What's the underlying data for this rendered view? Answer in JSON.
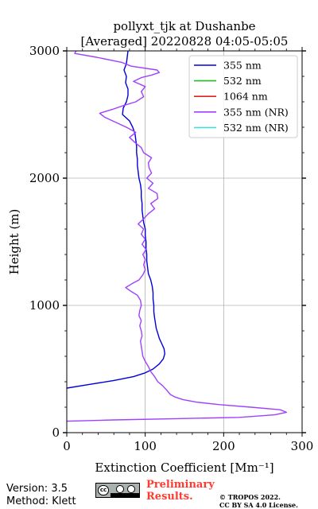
{
  "chart_data": {
    "type": "line",
    "title_line1": "pollyxt_tjk at Dushanbe",
    "title_line2": "[Averaged] 20220828 04:05-05:05",
    "xlabel": "Extinction Coefficient [Mm⁻¹]",
    "ylabel": "Height (m)",
    "xlim": [
      0,
      300
    ],
    "ylim": [
      0,
      3000
    ],
    "x_ticks": [
      "0",
      "100",
      "200",
      "300"
    ],
    "y_ticks": [
      "0",
      "1000",
      "2000",
      "3000"
    ],
    "grid": true,
    "legend_position": "top-right",
    "series": [
      {
        "name": "355 nm",
        "color": "#0000dd",
        "points": [
          [
            0,
            350
          ],
          [
            30,
            380
          ],
          [
            60,
            410
          ],
          [
            85,
            440
          ],
          [
            100,
            470
          ],
          [
            110,
            500
          ],
          [
            118,
            540
          ],
          [
            123,
            580
          ],
          [
            125,
            620
          ],
          [
            124,
            660
          ],
          [
            121,
            700
          ],
          [
            118,
            740
          ],
          [
            116,
            780
          ],
          [
            114,
            820
          ],
          [
            113,
            860
          ],
          [
            112,
            900
          ],
          [
            111,
            950
          ],
          [
            111,
            1000
          ],
          [
            110,
            1050
          ],
          [
            110,
            1100
          ],
          [
            109,
            1150
          ],
          [
            107,
            1200
          ],
          [
            104,
            1250
          ],
          [
            103,
            1300
          ],
          [
            102,
            1350
          ],
          [
            102,
            1400
          ],
          [
            101,
            1450
          ],
          [
            101,
            1500
          ],
          [
            100,
            1550
          ],
          [
            100,
            1600
          ],
          [
            98,
            1650
          ],
          [
            97,
            1700
          ],
          [
            96,
            1750
          ],
          [
            96,
            1800
          ],
          [
            95,
            1850
          ],
          [
            95,
            1900
          ],
          [
            94,
            1950
          ],
          [
            92,
            2000
          ],
          [
            91,
            2050
          ],
          [
            90,
            2100
          ],
          [
            90,
            2150
          ],
          [
            89,
            2200
          ],
          [
            89,
            2250
          ],
          [
            88,
            2300
          ],
          [
            87,
            2350
          ],
          [
            84,
            2400
          ],
          [
            80,
            2450
          ],
          [
            71,
            2500
          ],
          [
            72,
            2550
          ],
          [
            76,
            2600
          ],
          [
            78,
            2650
          ],
          [
            78,
            2700
          ],
          [
            75,
            2750
          ],
          [
            76,
            2800
          ],
          [
            73,
            2850
          ],
          [
            76,
            2900
          ],
          [
            77,
            2950
          ],
          [
            78,
            3000
          ]
        ]
      },
      {
        "name": "532 nm",
        "color": "#22bb22",
        "points": []
      },
      {
        "name": "1064 nm",
        "color": "#dd2222",
        "points": []
      },
      {
        "name": "355 nm (NR)",
        "color": "#a040ff",
        "points": [
          [
            0,
            90
          ],
          [
            60,
            100
          ],
          [
            140,
            110
          ],
          [
            220,
            120
          ],
          [
            265,
            140
          ],
          [
            280,
            160
          ],
          [
            272,
            180
          ],
          [
            235,
            200
          ],
          [
            195,
            220
          ],
          [
            165,
            240
          ],
          [
            148,
            260
          ],
          [
            138,
            280
          ],
          [
            132,
            300
          ],
          [
            128,
            330
          ],
          [
            122,
            370
          ],
          [
            116,
            400
          ],
          [
            112,
            440
          ],
          [
            107,
            480
          ],
          [
            104,
            520
          ],
          [
            100,
            560
          ],
          [
            97,
            600
          ],
          [
            96,
            640
          ],
          [
            95,
            680
          ],
          [
            94,
            720
          ],
          [
            96,
            760
          ],
          [
            95,
            800
          ],
          [
            93,
            840
          ],
          [
            95,
            880
          ],
          [
            92,
            920
          ],
          [
            93,
            960
          ],
          [
            95,
            1000
          ],
          [
            94,
            1040
          ],
          [
            90,
            1080
          ],
          [
            82,
            1110
          ],
          [
            75,
            1140
          ],
          [
            83,
            1170
          ],
          [
            92,
            1200
          ],
          [
            97,
            1240
          ],
          [
            100,
            1280
          ],
          [
            98,
            1320
          ],
          [
            100,
            1360
          ],
          [
            97,
            1400
          ],
          [
            101,
            1440
          ],
          [
            96,
            1480
          ],
          [
            100,
            1520
          ],
          [
            95,
            1560
          ],
          [
            98,
            1600
          ],
          [
            91,
            1640
          ],
          [
            98,
            1680
          ],
          [
            104,
            1720
          ],
          [
            112,
            1760
          ],
          [
            107,
            1800
          ],
          [
            116,
            1840
          ],
          [
            115,
            1880
          ],
          [
            104,
            1920
          ],
          [
            110,
            1960
          ],
          [
            102,
            2000
          ],
          [
            108,
            2040
          ],
          [
            105,
            2080
          ],
          [
            104,
            2120
          ],
          [
            108,
            2160
          ],
          [
            98,
            2200
          ],
          [
            95,
            2240
          ],
          [
            87,
            2280
          ],
          [
            80,
            2320
          ],
          [
            88,
            2360
          ],
          [
            76,
            2400
          ],
          [
            62,
            2440
          ],
          [
            48,
            2480
          ],
          [
            42,
            2510
          ],
          [
            58,
            2540
          ],
          [
            72,
            2570
          ],
          [
            88,
            2600
          ],
          [
            98,
            2640
          ],
          [
            95,
            2680
          ],
          [
            100,
            2720
          ],
          [
            85,
            2760
          ],
          [
            95,
            2790
          ],
          [
            108,
            2810
          ],
          [
            118,
            2830
          ],
          [
            115,
            2850
          ],
          [
            82,
            2880
          ],
          [
            70,
            2910
          ],
          [
            38,
            2950
          ],
          [
            10,
            2980
          ],
          [
            12,
            3000
          ]
        ]
      },
      {
        "name": "532 nm (NR)",
        "color": "#44dddd",
        "points": []
      }
    ]
  },
  "footer": {
    "version": "Version: 3.5",
    "method": "Method: Klett",
    "preliminary_line1": "Preliminary",
    "preliminary_line2": "Results.",
    "copyright_line1": "© TROPOS 2022.",
    "copyright_line2": "CC BY SA 4.0 License."
  }
}
